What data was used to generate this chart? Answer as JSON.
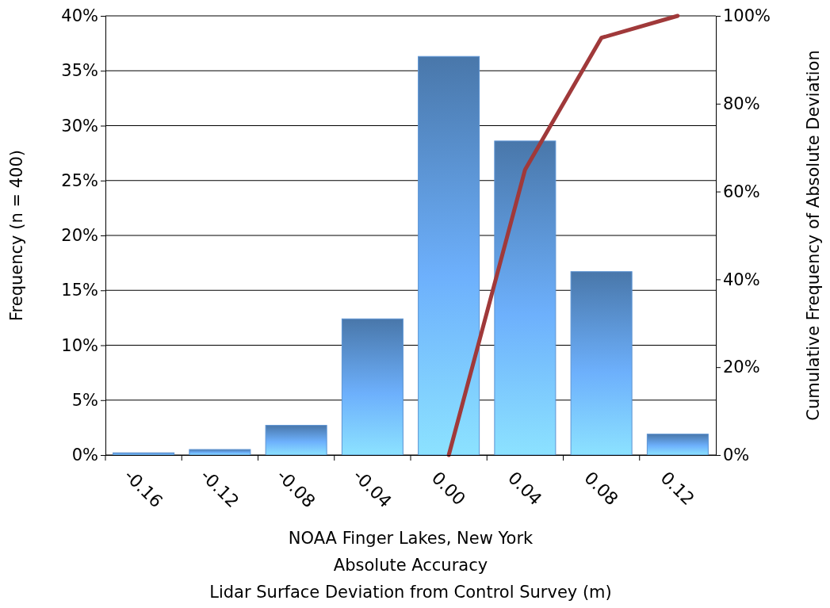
{
  "chart_data": {
    "type": "bar",
    "categories": [
      "-0.16",
      "-0.12",
      "-0.08",
      "-0.04",
      "0.00",
      "0.04",
      "0.08",
      "0.12"
    ],
    "series": [
      {
        "color": "#5b93d3",
        "values": [
          0.2,
          0.5,
          2.7,
          12.4,
          36.3,
          28.6,
          16.7,
          1.9
        ]
      },
      {
        "type": "line",
        "axis": "y2",
        "color": "#a0393a",
        "values": [
          null,
          null,
          null,
          null,
          0,
          65,
          95,
          100
        ]
      }
    ],
    "xlabel": "NOAA Finger Lakes, New York\nAbsolute Accuracy\nLidar Surface Deviation from Control Survey (m)",
    "ylabel": "Frequency (n = 400)",
    "y2label": "Cumulative Frequency of Absolute Deviation",
    "ylim": [
      0,
      40
    ],
    "yticks": [
      {
        "value": 0,
        "label": "0%"
      },
      {
        "value": 5,
        "label": "5%"
      },
      {
        "value": 10,
        "label": "10%"
      },
      {
        "value": 15,
        "label": "15%"
      },
      {
        "value": 20,
        "label": "20%"
      },
      {
        "value": 25,
        "label": "25%"
      },
      {
        "value": 30,
        "label": "30%"
      },
      {
        "value": 35,
        "label": "35%"
      },
      {
        "value": 40,
        "label": "40%"
      }
    ],
    "y2lim": [
      0,
      100
    ],
    "y2ticks": [
      {
        "value": 0,
        "label": "0%"
      },
      {
        "value": 20,
        "label": "20%"
      },
      {
        "value": 40,
        "label": "40%"
      },
      {
        "value": 60,
        "label": "60%"
      },
      {
        "value": 80,
        "label": "80%"
      },
      {
        "value": 100,
        "label": "100%"
      }
    ],
    "grid": "y"
  }
}
